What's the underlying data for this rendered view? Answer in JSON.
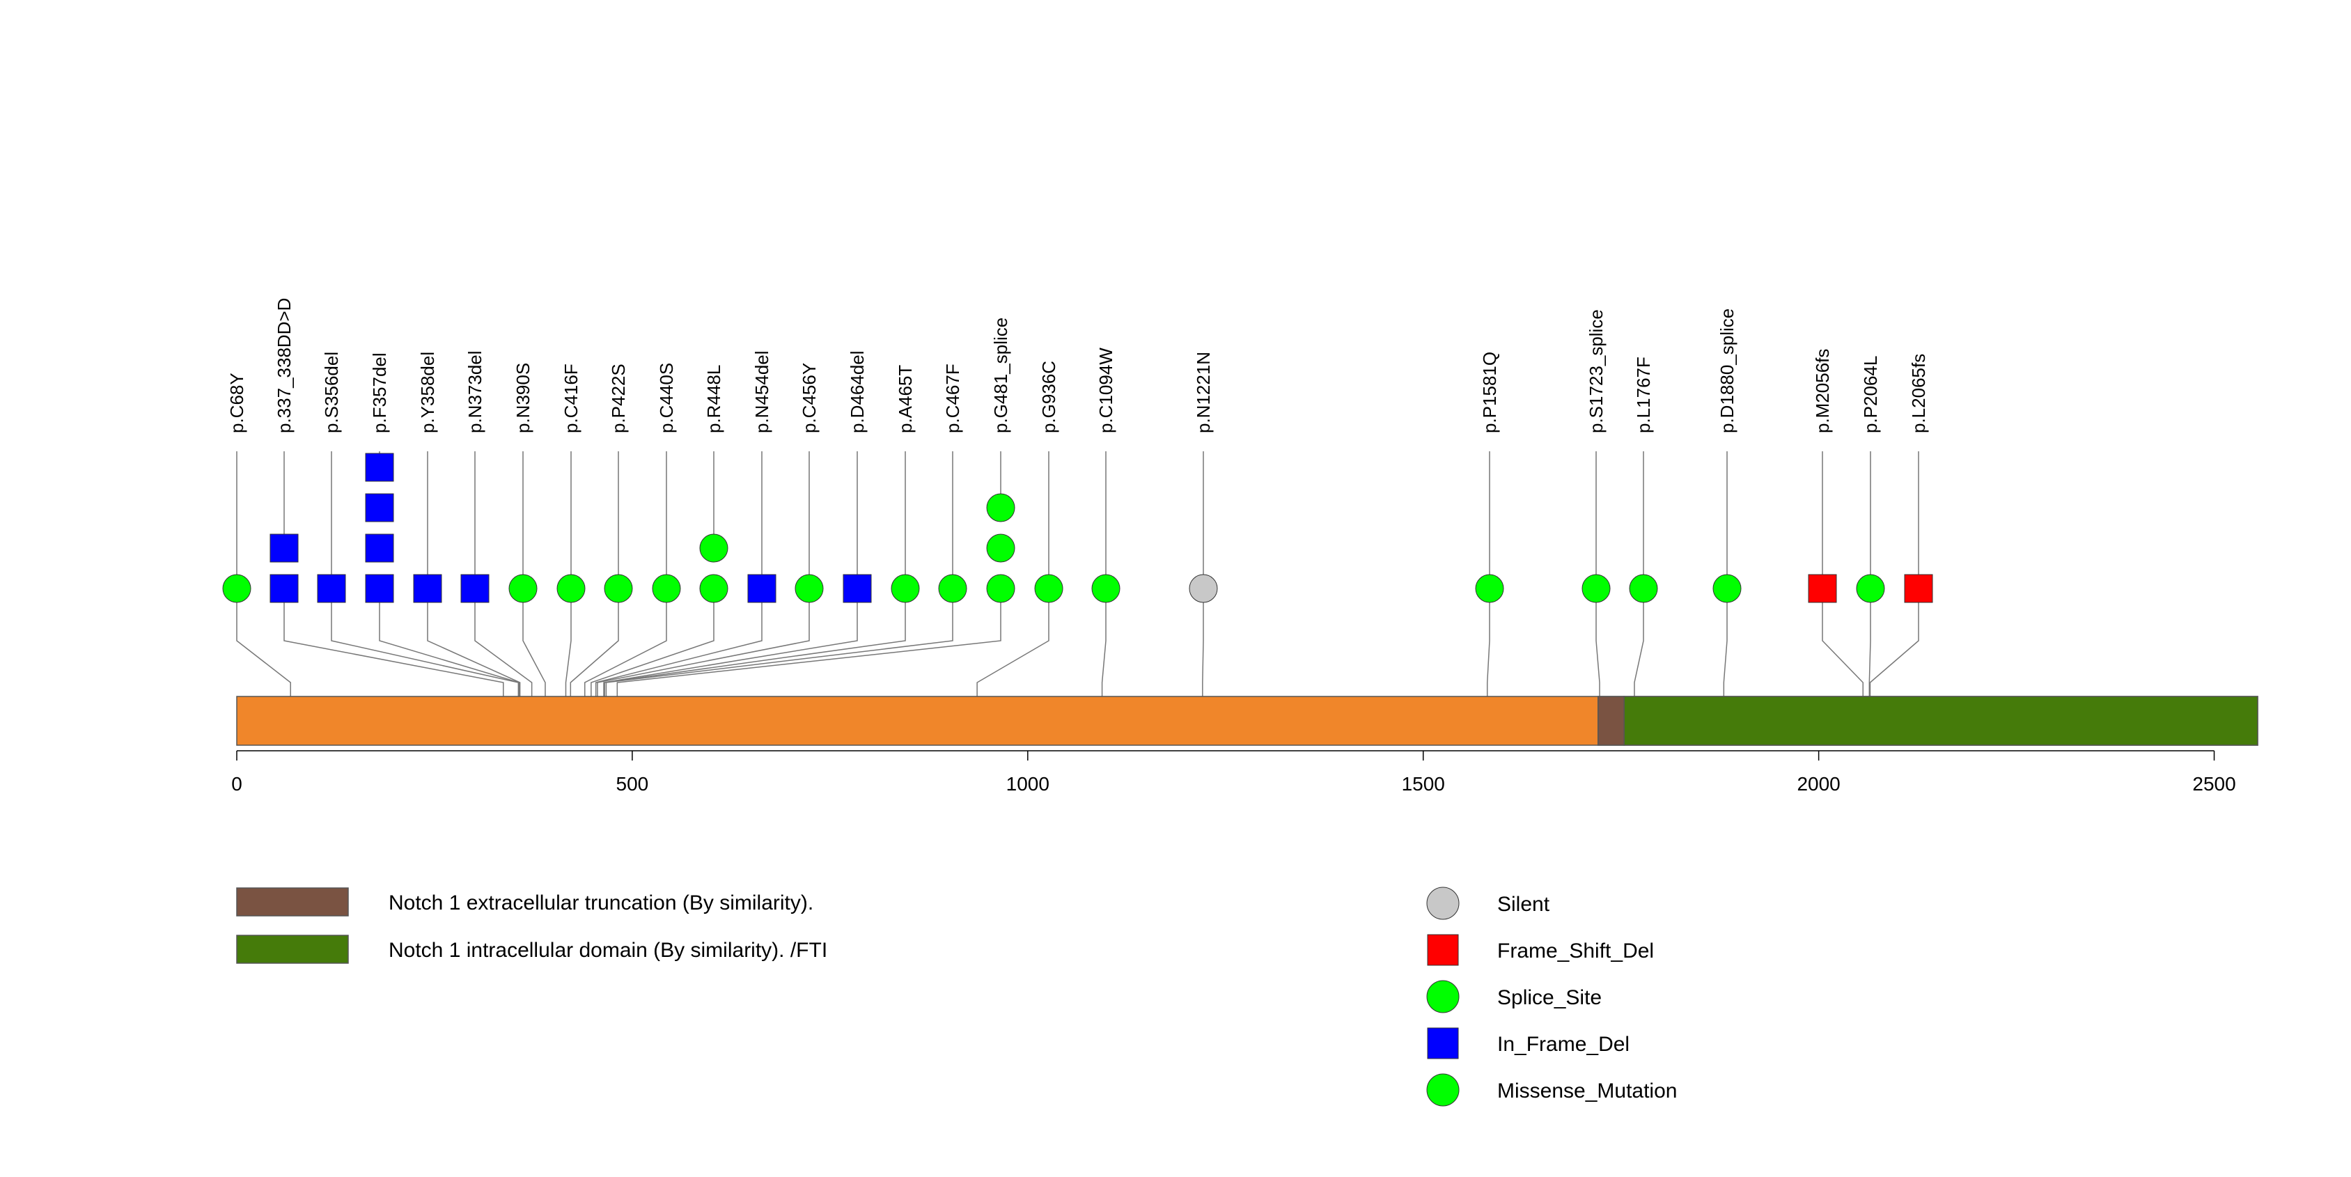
{
  "chart_data": {
    "type": "lollipop",
    "x_range": [
      0,
      2555
    ],
    "x_ticks": [
      0,
      500,
      1000,
      1500,
      2000,
      2500
    ],
    "protein_color": "#F0862A",
    "domains": [
      {
        "name": "Notch 1 extracellular truncation (By similarity).",
        "start": 1721,
        "end": 1754,
        "color": "#7A5342"
      },
      {
        "name": "Notch 1 intracellular domain (By similarity). /FTI",
        "start": 1754,
        "end": 2555,
        "color": "#457B0A"
      }
    ],
    "mutation_types": [
      {
        "name": "Silent",
        "color": "#C8C8C8",
        "shape": "circle"
      },
      {
        "name": "Frame_Shift_Del",
        "color": "#FF0000",
        "shape": "square"
      },
      {
        "name": "Splice_Site",
        "color": "#00FF00",
        "shape": "circle"
      },
      {
        "name": "In_Frame_Del",
        "color": "#0000FF",
        "shape": "square"
      },
      {
        "name": "Missense_Mutation",
        "color": "#00FF00",
        "shape": "circle"
      }
    ],
    "mutations": [
      {
        "label": "p.C68Y",
        "pos": 68,
        "type": "Missense_Mutation",
        "count": 1
      },
      {
        "label": "p.337_338DD>D",
        "pos": 337,
        "type": "In_Frame_Del",
        "count": 2
      },
      {
        "label": "p.S356del",
        "pos": 356,
        "type": "In_Frame_Del",
        "count": 1
      },
      {
        "label": "p.F357del",
        "pos": 357,
        "type": "In_Frame_Del",
        "count": 4
      },
      {
        "label": "p.Y358del",
        "pos": 358,
        "type": "In_Frame_Del",
        "count": 1
      },
      {
        "label": "p.N373del",
        "pos": 373,
        "type": "In_Frame_Del",
        "count": 1
      },
      {
        "label": "p.N390S",
        "pos": 390,
        "type": "Missense_Mutation",
        "count": 1
      },
      {
        "label": "p.C416F",
        "pos": 416,
        "type": "Missense_Mutation",
        "count": 1
      },
      {
        "label": "p.P422S",
        "pos": 422,
        "type": "Missense_Mutation",
        "count": 1
      },
      {
        "label": "p.C440S",
        "pos": 440,
        "type": "Missense_Mutation",
        "count": 1
      },
      {
        "label": "p.R448L",
        "pos": 448,
        "type": "Missense_Mutation",
        "count": 2
      },
      {
        "label": "p.N454del",
        "pos": 454,
        "type": "In_Frame_Del",
        "count": 1
      },
      {
        "label": "p.C456Y",
        "pos": 456,
        "type": "Missense_Mutation",
        "count": 1
      },
      {
        "label": "p.D464del",
        "pos": 464,
        "type": "In_Frame_Del",
        "count": 1
      },
      {
        "label": "p.A465T",
        "pos": 465,
        "type": "Missense_Mutation",
        "count": 1
      },
      {
        "label": "p.C467F",
        "pos": 467,
        "type": "Missense_Mutation",
        "count": 1
      },
      {
        "label": "p.G481_splice",
        "pos": 481,
        "type": "Splice_Site",
        "count": 3
      },
      {
        "label": "p.G936C",
        "pos": 936,
        "type": "Missense_Mutation",
        "count": 1
      },
      {
        "label": "p.C1094W",
        "pos": 1094,
        "type": "Missense_Mutation",
        "count": 1
      },
      {
        "label": "p.N1221N",
        "pos": 1221,
        "type": "Silent",
        "count": 1
      },
      {
        "label": "p.P1581Q",
        "pos": 1581,
        "type": "Missense_Mutation",
        "count": 1
      },
      {
        "label": "p.S1723_splice",
        "pos": 1723,
        "type": "Splice_Site",
        "count": 1
      },
      {
        "label": "p.L1767F",
        "pos": 1767,
        "type": "Missense_Mutation",
        "count": 1
      },
      {
        "label": "p.D1880_splice",
        "pos": 1880,
        "type": "Splice_Site",
        "count": 1
      },
      {
        "label": "p.M2056fs",
        "pos": 2056,
        "type": "Frame_Shift_Del",
        "count": 1
      },
      {
        "label": "p.P2064L",
        "pos": 2064,
        "type": "Missense_Mutation",
        "count": 1
      },
      {
        "label": "p.L2065fs",
        "pos": 2065,
        "type": "Frame_Shift_Del",
        "count": 1
      }
    ]
  }
}
